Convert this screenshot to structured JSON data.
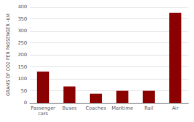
{
  "chart_data": {
    "type": "bar",
    "categories": [
      "Passenger\ncars",
      "Buses",
      "Coaches",
      "Maritime",
      "Rail",
      "Air"
    ],
    "values": [
      130,
      68,
      38,
      50,
      50,
      375
    ],
    "color": "#8b0000",
    "ylabel": "GRAMS OF CO2 PER PASSENGER -KM",
    "ylim": [
      0,
      400
    ],
    "yticks": [
      0,
      50,
      100,
      150,
      200,
      250,
      300,
      350,
      400
    ],
    "grid": true
  }
}
